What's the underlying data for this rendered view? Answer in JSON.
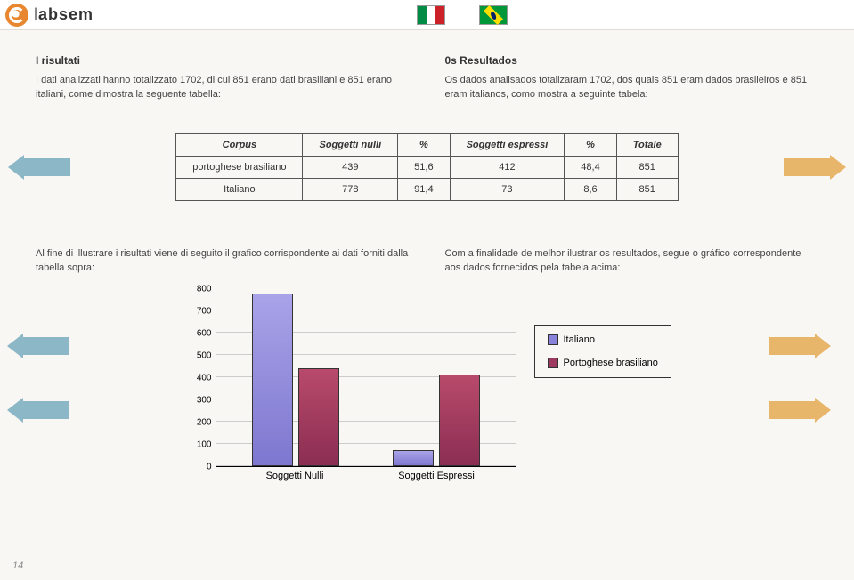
{
  "logo_text_light": "l",
  "logo_text_bold": "absem",
  "left": {
    "title": "I risultati",
    "body": "I dati analizzati hanno totalizzato 1702, di cui 851 erano dati brasiliani e 851 erano italiani, come dimostra la seguente tabella:",
    "para2": "Al fine di illustrare i risultati viene di seguito il grafico corrispondente ai dati forniti dalla tabella sopra:"
  },
  "right": {
    "title": "0s Resultados",
    "body": "Os dados analisados totalizaram 1702, dos quais 851 eram dados brasileiros e 851 eram italianos, como mostra a seguinte tabela:",
    "para2": "Com a finalidade de melhor ilustrar os resultados, segue o gráfico correspondente aos dados fornecidos pela tabela acima:"
  },
  "table": {
    "headers": [
      "Corpus",
      "Soggetti nulli",
      "%",
      "Soggetti espressi",
      "%",
      "Totale"
    ],
    "rows": [
      [
        "portoghese brasiliano",
        "439",
        "51,6",
        "412",
        "48,4",
        "851"
      ],
      [
        "Italiano",
        "778",
        "91,4",
        "73",
        "8,6",
        "851"
      ]
    ]
  },
  "chart": {
    "y_max": 800,
    "y_ticks": [
      0,
      100,
      200,
      300,
      400,
      500,
      600,
      700,
      800
    ],
    "categories": [
      "Soggetti Nulli",
      "Soggetti Espressi"
    ],
    "series": {
      "Italiano": {
        "color": "#8a83db",
        "values": [
          778,
          73
        ]
      },
      "Portoghese brasiliano": {
        "color": "#9c3a5f",
        "values": [
          439,
          412
        ]
      }
    },
    "legend": [
      "Italiano",
      "Portoghese brasiliano"
    ]
  },
  "page_number": "14",
  "arrow_colors": {
    "left": "#8bb7c7",
    "right": "#e8b66a"
  }
}
